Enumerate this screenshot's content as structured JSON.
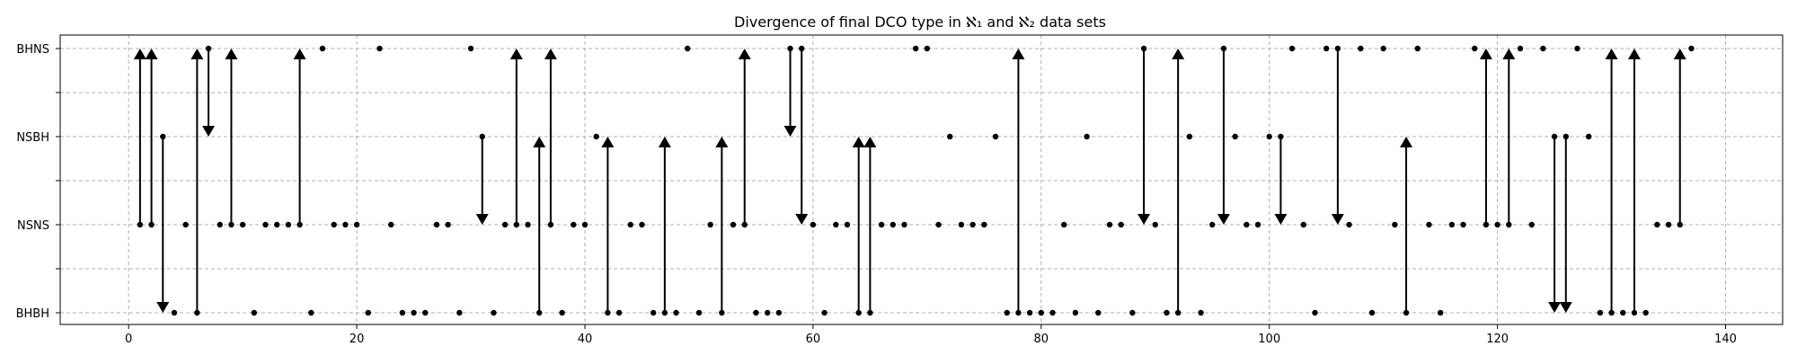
{
  "chart_data": {
    "type": "scatter",
    "title": "Divergence of final DCO type in ℵ₁ and ℵ₂ data sets",
    "xlabel": "",
    "ylabel": "",
    "xlim": [
      -6,
      145
    ],
    "x_ticks": [
      0,
      20,
      40,
      60,
      80,
      100,
      120,
      140
    ],
    "y_categories": [
      "BHBH",
      "NSNS",
      "NSBH",
      "BHNS"
    ],
    "y_minor_ticks": [
      0.5,
      1.5,
      2.5
    ],
    "grid": true,
    "colors": {
      "marker": "#000000",
      "grid": "#b0b0b0"
    },
    "series": [
      {
        "points": [
          [
            1,
            1
          ],
          [
            2,
            1
          ],
          [
            3,
            2
          ],
          [
            4,
            0
          ],
          [
            5,
            1
          ],
          [
            6,
            0
          ],
          [
            7,
            3
          ],
          [
            8,
            1
          ],
          [
            9,
            1
          ],
          [
            10,
            1
          ],
          [
            11,
            0
          ],
          [
            12,
            1
          ],
          [
            13,
            1
          ],
          [
            14,
            1
          ],
          [
            15,
            1
          ],
          [
            16,
            0
          ],
          [
            17,
            3
          ],
          [
            18,
            1
          ],
          [
            19,
            1
          ],
          [
            20,
            1
          ],
          [
            21,
            0
          ],
          [
            22,
            3
          ],
          [
            23,
            1
          ],
          [
            24,
            0
          ],
          [
            25,
            0
          ],
          [
            26,
            0
          ],
          [
            27,
            1
          ],
          [
            28,
            1
          ],
          [
            29,
            0
          ],
          [
            30,
            3
          ],
          [
            31,
            2
          ],
          [
            32,
            0
          ],
          [
            33,
            1
          ],
          [
            34,
            1
          ],
          [
            35,
            1
          ],
          [
            36,
            0
          ],
          [
            37,
            1
          ],
          [
            38,
            0
          ],
          [
            39,
            1
          ],
          [
            40,
            1
          ],
          [
            41,
            2
          ],
          [
            42,
            0
          ],
          [
            43,
            0
          ],
          [
            44,
            1
          ],
          [
            45,
            1
          ],
          [
            46,
            0
          ],
          [
            47,
            0
          ],
          [
            48,
            0
          ],
          [
            49,
            3
          ],
          [
            50,
            0
          ],
          [
            51,
            1
          ],
          [
            52,
            0
          ],
          [
            53,
            1
          ],
          [
            54,
            1
          ],
          [
            55,
            0
          ],
          [
            56,
            0
          ],
          [
            57,
            0
          ],
          [
            58,
            3
          ],
          [
            59,
            3
          ],
          [
            60,
            1
          ],
          [
            61,
            0
          ],
          [
            62,
            1
          ],
          [
            63,
            1
          ],
          [
            64,
            0
          ],
          [
            65,
            0
          ],
          [
            66,
            1
          ],
          [
            67,
            1
          ],
          [
            68,
            1
          ],
          [
            69,
            3
          ],
          [
            70,
            3
          ],
          [
            71,
            1
          ],
          [
            72,
            2
          ],
          [
            73,
            1
          ],
          [
            74,
            1
          ],
          [
            75,
            1
          ],
          [
            76,
            2
          ],
          [
            77,
            0
          ],
          [
            78,
            0
          ],
          [
            79,
            0
          ],
          [
            80,
            0
          ],
          [
            81,
            0
          ],
          [
            82,
            1
          ],
          [
            83,
            0
          ],
          [
            84,
            2
          ],
          [
            85,
            0
          ],
          [
            86,
            1
          ],
          [
            87,
            1
          ],
          [
            88,
            0
          ],
          [
            89,
            3
          ],
          [
            90,
            1
          ],
          [
            91,
            0
          ],
          [
            92,
            0
          ],
          [
            93,
            2
          ],
          [
            94,
            0
          ],
          [
            95,
            1
          ],
          [
            96,
            3
          ],
          [
            97,
            2
          ],
          [
            98,
            1
          ],
          [
            99,
            1
          ],
          [
            100,
            2
          ],
          [
            101,
            2
          ],
          [
            102,
            3
          ],
          [
            103,
            1
          ],
          [
            104,
            0
          ],
          [
            105,
            3
          ],
          [
            106,
            3
          ],
          [
            107,
            1
          ],
          [
            108,
            3
          ],
          [
            109,
            0
          ],
          [
            110,
            3
          ],
          [
            111,
            1
          ],
          [
            112,
            0
          ],
          [
            113,
            3
          ],
          [
            114,
            1
          ],
          [
            115,
            0
          ],
          [
            116,
            1
          ],
          [
            117,
            1
          ],
          [
            118,
            3
          ],
          [
            119,
            1
          ],
          [
            120,
            1
          ],
          [
            121,
            1
          ],
          [
            122,
            3
          ],
          [
            123,
            1
          ],
          [
            124,
            3
          ],
          [
            125,
            2
          ],
          [
            126,
            2
          ],
          [
            127,
            3
          ],
          [
            128,
            2
          ],
          [
            129,
            0
          ],
          [
            130,
            0
          ],
          [
            131,
            0
          ],
          [
            132,
            0
          ],
          [
            133,
            0
          ],
          [
            134,
            1
          ],
          [
            135,
            1
          ],
          [
            136,
            1
          ],
          [
            137,
            3
          ]
        ]
      }
    ],
    "arrows": [
      {
        "x": 1,
        "from": 1,
        "to": 3
      },
      {
        "x": 2,
        "from": 1,
        "to": 3
      },
      {
        "x": 3,
        "from": 2,
        "to": 0
      },
      {
        "x": 6,
        "from": 0,
        "to": 3
      },
      {
        "x": 7,
        "from": 3,
        "to": 2
      },
      {
        "x": 9,
        "from": 1,
        "to": 3
      },
      {
        "x": 15,
        "from": 1,
        "to": 3
      },
      {
        "x": 31,
        "from": 2,
        "to": 1
      },
      {
        "x": 34,
        "from": 1,
        "to": 3
      },
      {
        "x": 36,
        "from": 0,
        "to": 2
      },
      {
        "x": 37,
        "from": 1,
        "to": 3
      },
      {
        "x": 42,
        "from": 0,
        "to": 2
      },
      {
        "x": 47,
        "from": 0,
        "to": 2
      },
      {
        "x": 52,
        "from": 0,
        "to": 2
      },
      {
        "x": 54,
        "from": 1,
        "to": 3
      },
      {
        "x": 58,
        "from": 3,
        "to": 2
      },
      {
        "x": 59,
        "from": 3,
        "to": 1
      },
      {
        "x": 64,
        "from": 0,
        "to": 2
      },
      {
        "x": 65,
        "from": 0,
        "to": 2
      },
      {
        "x": 78,
        "from": 0,
        "to": 3
      },
      {
        "x": 89,
        "from": 3,
        "to": 1
      },
      {
        "x": 92,
        "from": 0,
        "to": 3
      },
      {
        "x": 96,
        "from": 3,
        "to": 1
      },
      {
        "x": 101,
        "from": 2,
        "to": 1
      },
      {
        "x": 106,
        "from": 3,
        "to": 1
      },
      {
        "x": 112,
        "from": 0,
        "to": 2
      },
      {
        "x": 119,
        "from": 1,
        "to": 3
      },
      {
        "x": 121,
        "from": 1,
        "to": 3
      },
      {
        "x": 125,
        "from": 2,
        "to": 0
      },
      {
        "x": 126,
        "from": 2,
        "to": 0
      },
      {
        "x": 130,
        "from": 0,
        "to": 3
      },
      {
        "x": 132,
        "from": 0,
        "to": 3
      },
      {
        "x": 136,
        "from": 1,
        "to": 3
      }
    ]
  }
}
